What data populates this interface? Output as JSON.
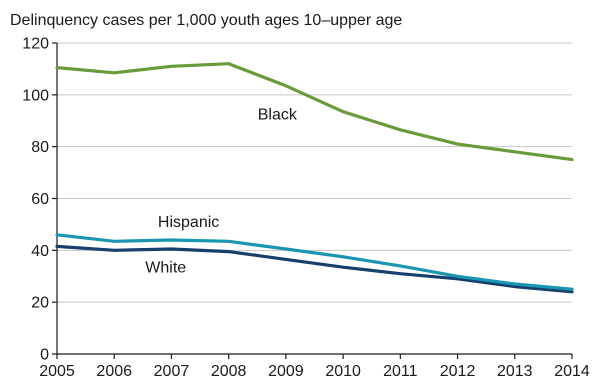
{
  "chart_data": {
    "type": "line",
    "title": "Delinquency cases per 1,000 youth ages 10–upper age",
    "xlabel": "",
    "ylabel": "",
    "x": [
      2005,
      2006,
      2007,
      2008,
      2009,
      2010,
      2011,
      2012,
      2013,
      2014
    ],
    "xlim": [
      2005,
      2014
    ],
    "ylim": [
      0,
      120
    ],
    "y_ticks": [
      0,
      20,
      40,
      60,
      80,
      100,
      120
    ],
    "x_tick_labels": [
      "2005",
      "2006",
      "2007",
      "2008",
      "2009",
      "2010",
      "2011",
      "2012",
      "2013",
      "2014"
    ],
    "y_tick_labels": [
      "0",
      "20",
      "40",
      "60",
      "80",
      "100",
      "120"
    ],
    "grid": "horizontal",
    "legend": "none (series labeled directly on the chart)",
    "series": [
      {
        "name": "Black",
        "color": "#6a9b3a",
        "values": [
          110.5,
          108.5,
          111,
          112,
          103.5,
          93.5,
          86.5,
          81,
          78,
          75
        ]
      },
      {
        "name": "Hispanic",
        "color": "#1a95b2",
        "values": [
          46,
          43.5,
          44,
          43.5,
          40.5,
          37.5,
          34,
          30,
          27,
          25
        ]
      },
      {
        "name": "White",
        "color": "#173f6b",
        "values": [
          41.5,
          40,
          40.5,
          39.5,
          36.5,
          33.5,
          31,
          29,
          26,
          24
        ]
      }
    ]
  }
}
